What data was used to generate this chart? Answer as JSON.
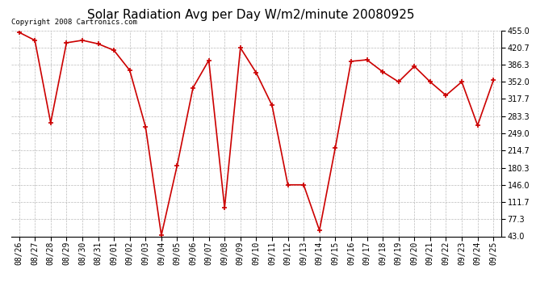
{
  "title": "Solar Radiation Avg per Day W/m2/minute 20080925",
  "copyright_text": "Copyright 2008 Cartronics.com",
  "dates": [
    "08/26",
    "08/27",
    "08/28",
    "08/29",
    "08/30",
    "08/31",
    "09/01",
    "09/02",
    "09/03",
    "09/04",
    "09/05",
    "09/06",
    "09/07",
    "09/08",
    "09/09",
    "09/10",
    "09/11",
    "09/12",
    "09/13",
    "09/14",
    "09/15",
    "09/16",
    "09/17",
    "09/18",
    "09/19",
    "09/20",
    "09/21",
    "09/22",
    "09/23",
    "09/24",
    "09/25"
  ],
  "values": [
    451,
    435,
    270,
    430,
    435,
    428,
    415,
    375,
    262,
    45,
    185,
    340,
    395,
    100,
    420,
    370,
    305,
    146,
    146,
    55,
    220,
    393,
    396,
    372,
    352,
    383,
    352,
    325,
    352,
    265,
    355
  ],
  "line_color": "#cc0000",
  "marker_color": "#cc0000",
  "marker_size": 5,
  "line_width": 1.2,
  "ylim": [
    43.0,
    455.0
  ],
  "yticks": [
    43.0,
    77.3,
    111.7,
    146.0,
    180.3,
    214.7,
    249.0,
    283.3,
    317.7,
    352.0,
    386.3,
    420.7,
    455.0
  ],
  "grid_color": "#bbbbbb",
  "background_color": "#ffffff",
  "title_fontsize": 11,
  "tick_fontsize": 7,
  "copyright_fontsize": 6.5
}
